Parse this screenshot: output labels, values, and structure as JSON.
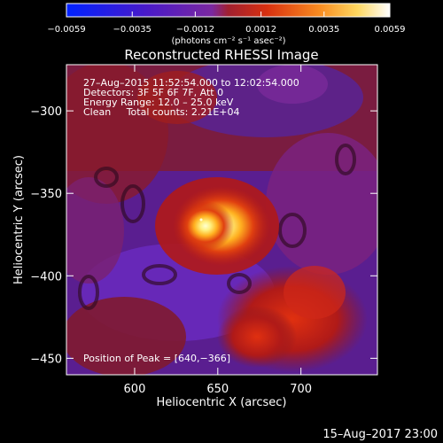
{
  "chart_data": {
    "type": "heatmap",
    "title": "Reconstructed RHESSI Image",
    "xlabel": "Heliocentric X (arcsec)",
    "ylabel": "Heliocentric Y (arcsec)",
    "xlim": [
      559,
      746
    ],
    "ylim": [
      -460,
      -272
    ],
    "x_ticks": [
      {
        "value": 600,
        "label": "600"
      },
      {
        "value": 650,
        "label": "650"
      },
      {
        "value": 700,
        "label": "700"
      }
    ],
    "y_ticks": [
      {
        "value": -300,
        "label": "−300"
      },
      {
        "value": -350,
        "label": "−350"
      },
      {
        "value": -400,
        "label": "−400"
      },
      {
        "value": -450,
        "label": "−450"
      }
    ],
    "colorbar": {
      "range": [
        -0.0059,
        0.0059
      ],
      "ticks": [
        {
          "value": -0.0059,
          "label": "−0.0059"
        },
        {
          "value": -0.0035,
          "label": "−0.0035"
        },
        {
          "value": -0.0012,
          "label": "−0.0012"
        },
        {
          "value": 0.0012,
          "label": "0.0012"
        },
        {
          "value": 0.0035,
          "label": "0.0035"
        },
        {
          "value": 0.0059,
          "label": "0.0059"
        }
      ],
      "unit_label": "(photons cm⁻² s⁻¹ asec⁻²)",
      "colors": [
        "#0022ff",
        "#5a1ab4",
        "#7a28a0",
        "#c0201e",
        "#f06010",
        "#ffc030",
        "#ffffff"
      ]
    },
    "annotations": {
      "line1": "27–Aug–2015 11:52:54.000 to 12:02:54.000",
      "line2": "Detectors: 3F 5F 6F 7F, Att 0",
      "line3": "Energy Range: 12.0 – 25.0 keV",
      "line4": "Clean     Total counts: 2.21E+04",
      "peak": "Position of Peak = [640,−366]"
    },
    "peak_position": [
      640,
      -366
    ],
    "footer": "15–Aug–2017 23:00"
  }
}
